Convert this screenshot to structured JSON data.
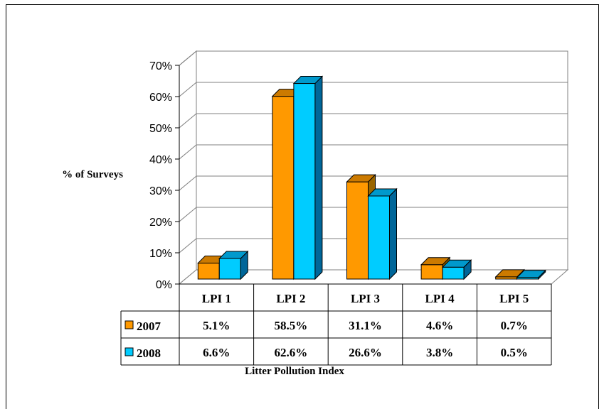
{
  "chart_data": {
    "type": "bar",
    "categories": [
      "LPI 1",
      "LPI 2",
      "LPI 3",
      "LPI 4",
      "LPI 5"
    ],
    "series": [
      {
        "name": "2007",
        "values": [
          5.1,
          58.5,
          31.1,
          4.6,
          0.7
        ],
        "labels": [
          "5.1%",
          "58.5%",
          "31.1%",
          "4.6%",
          "0.7%"
        ],
        "color": "#FF9900",
        "side_color": "#996600",
        "top_color": "#CC7A00"
      },
      {
        "name": "2008",
        "values": [
          6.6,
          62.6,
          26.6,
          3.8,
          0.5
        ],
        "labels": [
          "6.6%",
          "62.6%",
          "26.6%",
          "3.8%",
          "0.5%"
        ],
        "color": "#00CCFF",
        "side_color": "#006699",
        "top_color": "#0099CC"
      }
    ],
    "ylabel": "% of Surveys",
    "xlabel": "Litter Pollution Index",
    "ylim": [
      0,
      70
    ],
    "yticks": [
      0,
      10,
      20,
      30,
      40,
      50,
      60,
      70
    ],
    "ytick_labels": [
      "0%",
      "10%",
      "20%",
      "30%",
      "40%",
      "50%",
      "60%",
      "70%"
    ],
    "grid": true,
    "data_table": true
  }
}
